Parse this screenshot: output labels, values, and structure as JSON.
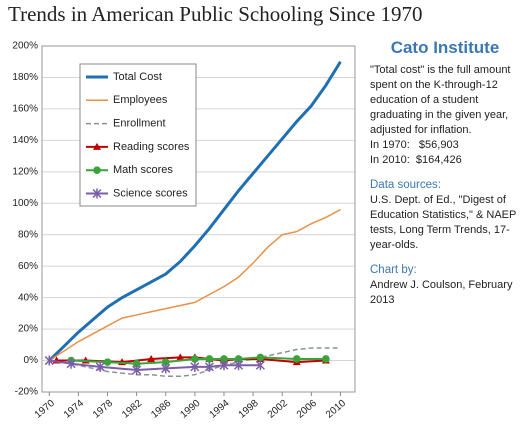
{
  "chart_data": {
    "type": "line",
    "title": "Trends in American Public Schooling Since 1970",
    "x": [
      1970,
      1972,
      1974,
      1976,
      1978,
      1980,
      1982,
      1984,
      1986,
      1988,
      1990,
      1992,
      1994,
      1996,
      1998,
      2000,
      2002,
      2004,
      2006,
      2008,
      2010
    ],
    "xlim": [
      1969,
      2012
    ],
    "xticks": [
      1970,
      1974,
      1978,
      1982,
      1986,
      1990,
      1994,
      1998,
      2002,
      2006,
      2010
    ],
    "ylim": [
      -20,
      200
    ],
    "yticks": [
      {
        "value": -20,
        "label": "-20%"
      },
      {
        "value": 0,
        "label": "0%"
      },
      {
        "value": 20,
        "label": "20%"
      },
      {
        "value": 40,
        "label": "40%"
      },
      {
        "value": 60,
        "label": "60%"
      },
      {
        "value": 80,
        "label": "80%"
      },
      {
        "value": 100,
        "label": "100%"
      },
      {
        "value": 120,
        "label": "120%"
      },
      {
        "value": 140,
        "label": "140%"
      },
      {
        "value": 160,
        "label": "160%"
      },
      {
        "value": 180,
        "label": "180%"
      },
      {
        "value": 200,
        "label": "200%"
      }
    ],
    "grid": true,
    "legend": "upper left",
    "series": [
      {
        "name": "Total Cost",
        "color": "#1f6fb2",
        "style": "solid",
        "width": 3,
        "values": [
          0,
          9,
          18,
          26,
          34,
          40,
          45,
          50,
          55,
          63,
          73,
          84,
          96,
          108,
          119,
          130,
          141,
          152,
          162,
          175,
          190
        ]
      },
      {
        "name": "Employees",
        "color": "#e8914a",
        "style": "solid",
        "width": 1.5,
        "values": [
          0,
          6,
          12,
          17,
          22,
          27,
          29,
          31,
          33,
          35,
          37,
          42,
          47,
          53,
          62,
          72,
          80,
          82,
          87,
          91,
          96
        ]
      },
      {
        "name": "Enrollment",
        "color": "#8a9299",
        "style": "dashed",
        "width": 1.5,
        "values": [
          0,
          -1,
          -3,
          -5,
          -7,
          -8,
          -9,
          -9,
          -10,
          -10,
          -9,
          -6,
          -3,
          -1,
          1,
          3,
          5,
          7,
          8,
          8,
          8
        ]
      },
      {
        "name": "Reading scores",
        "color": "#c00000",
        "style": "solid",
        "width": 2,
        "marker": "triangle",
        "x": [
          1971,
          1975,
          1980,
          1984,
          1988,
          1990,
          1992,
          1994,
          1996,
          1999,
          2004,
          2008
        ],
        "values": [
          0,
          0,
          -1,
          1,
          2,
          2,
          1,
          0,
          1,
          1,
          -1,
          0
        ]
      },
      {
        "name": "Math scores",
        "color": "#3aa33a",
        "style": "solid",
        "width": 2,
        "marker": "circle",
        "x": [
          1973,
          1978,
          1982,
          1986,
          1990,
          1992,
          1994,
          1996,
          1999,
          2004,
          2008
        ],
        "values": [
          0,
          -1,
          -2,
          -1,
          1,
          1,
          1,
          1,
          2,
          1,
          1
        ]
      },
      {
        "name": "Science scores",
        "color": "#7b5ea7",
        "style": "solid",
        "width": 2,
        "marker": "star",
        "x": [
          1970,
          1973,
          1977,
          1982,
          1986,
          1990,
          1992,
          1994,
          1996,
          1999
        ],
        "values": [
          0,
          -2,
          -4,
          -6,
          -5,
          -4,
          -4,
          -3,
          -3,
          -3
        ]
      }
    ]
  },
  "sidebar": {
    "title": "Cato Institute",
    "note": "\"Total cost\" is the full amount spent on the K-through-12 education of a student graduating in the given year, adjusted for inflation.",
    "cost_1970": "In 1970:   $56,903",
    "cost_2010": "In 2010:  $164,426",
    "sources_heading": "Data sources:",
    "sources": "U.S. Dept. of Ed., \"Digest of Education Statistics,\" & NAEP tests, Long Term Trends, 17-year-olds.",
    "credit_heading": "Chart by:",
    "credit": "Andrew J. Coulson, February 2013"
  }
}
